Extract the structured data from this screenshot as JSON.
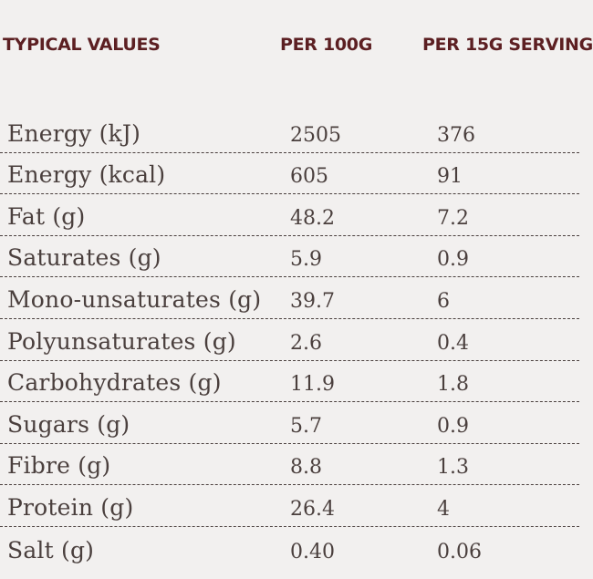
{
  "header": {
    "label": "TYPICAL VALUES",
    "per100": "PER 100G",
    "serving": "PER 15G SERVING"
  },
  "rows": [
    {
      "label": "Energy (kJ)",
      "per100": "2505",
      "serving": "376"
    },
    {
      "label": "Energy (kcal)",
      "per100": "605",
      "serving": "91"
    },
    {
      "label": "Fat (g)",
      "per100": "48.2",
      "serving": "7.2"
    },
    {
      "label": "Saturates (g)",
      "per100": "5.9",
      "serving": "0.9"
    },
    {
      "label": "Mono-unsaturates (g)",
      "per100": "39.7",
      "serving": "6"
    },
    {
      "label": "Polyunsaturates (g)",
      "per100": "2.6",
      "serving": "0.4"
    },
    {
      "label": "Carbohydrates (g)",
      "per100": "11.9",
      "serving": "1.8"
    },
    {
      "label": "Sugars (g)",
      "per100": "5.7",
      "serving": "0.9"
    },
    {
      "label": "Fibre (g)",
      "per100": "8.8",
      "serving": "1.3"
    },
    {
      "label": "Protein (g)",
      "per100": "26.4",
      "serving": "4"
    },
    {
      "label": "Salt (g)",
      "per100": "0.40",
      "serving": "0.06"
    }
  ],
  "colors": {
    "background": "#f2f0ef",
    "header_text": "#5c1f22",
    "body_text": "#4a3f3d"
  }
}
